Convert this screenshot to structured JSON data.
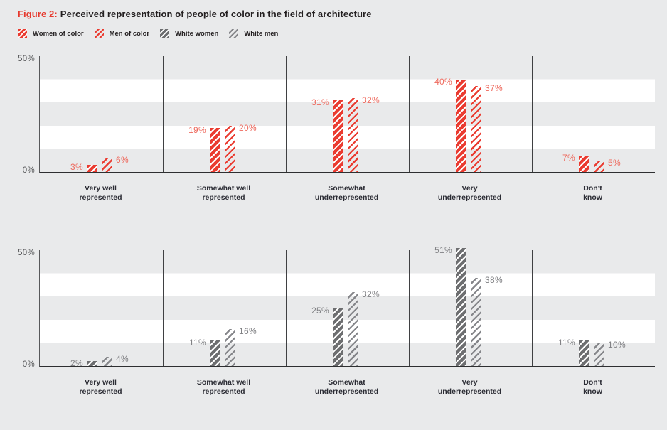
{
  "title": {
    "prefix": "Figure 2:",
    "text": "Perceived representation of people of color in the field of architecture"
  },
  "legend": [
    {
      "label": "Women of color",
      "swatch": "red-solid-hatch"
    },
    {
      "label": "Men of color",
      "swatch": "red-line-hatch"
    },
    {
      "label": "White women",
      "swatch": "gray-solid-hatch"
    },
    {
      "label": "White men",
      "swatch": "gray-line-hatch"
    }
  ],
  "colors": {
    "page-bg": "#e9eaeb",
    "band": "#ffffff",
    "title-text": "#231f20",
    "figure-label-red": "#e6382c",
    "red-bar": "#ea3b30",
    "red-value-label": "#ee6a5e",
    "gray-bar": "#6d6e70",
    "gray-hatch": "#85868a",
    "gray-value-label": "#808184",
    "axis": "#2e2f31",
    "divider": "#3f4042",
    "tick-label": "#58595b",
    "category-label": "#2b2c34"
  },
  "chart_data": [
    {
      "type": "bar",
      "group": "people-of-color",
      "palette": "red",
      "categories": [
        [
          "Very well",
          "represented"
        ],
        [
          "Somewhat well",
          "represented"
        ],
        [
          "Somewhat",
          "underrepresented"
        ],
        [
          "Very",
          "underrepresented"
        ],
        [
          "Don't",
          "know"
        ]
      ],
      "series": [
        {
          "name": "Women of color",
          "style": "solid",
          "values": [
            3,
            19,
            31,
            40,
            7
          ]
        },
        {
          "name": "Men of color",
          "style": "hatch",
          "values": [
            6,
            20,
            32,
            37,
            5
          ]
        }
      ],
      "value_suffix": "%",
      "ylim": [
        0,
        50
      ],
      "yticks": [
        "0%",
        "50%"
      ],
      "band_step_pct": 10,
      "legend_position": "top"
    },
    {
      "type": "bar",
      "group": "white",
      "palette": "gray",
      "categories": [
        [
          "Very well",
          "represented"
        ],
        [
          "Somewhat well",
          "represented"
        ],
        [
          "Somewhat",
          "underrepresented"
        ],
        [
          "Very",
          "underrepresented"
        ],
        [
          "Don't",
          "know"
        ]
      ],
      "series": [
        {
          "name": "White women",
          "style": "solid",
          "values": [
            2,
            11,
            25,
            51,
            11
          ]
        },
        {
          "name": "White men",
          "style": "hatch",
          "values": [
            4,
            16,
            32,
            38,
            10
          ]
        }
      ],
      "value_suffix": "%",
      "ylim": [
        0,
        50
      ],
      "yticks": [
        "0%",
        "50%"
      ],
      "band_step_pct": 10,
      "legend_position": "top"
    }
  ]
}
